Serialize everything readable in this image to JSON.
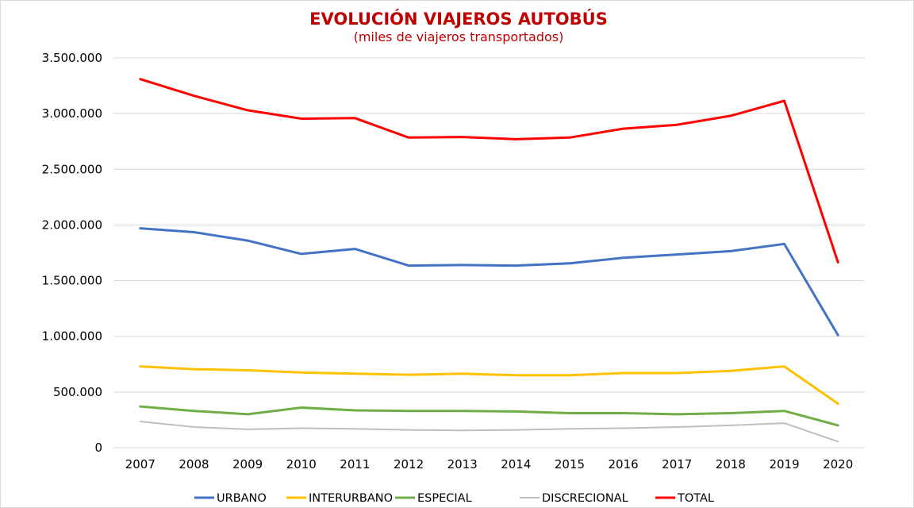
{
  "chart_data": {
    "type": "line",
    "title": "EVOLUCIÓN VIAJEROS AUTOBÚS",
    "subtitle": "(miles de viajeros transportados)",
    "xlabel": "",
    "ylabel": "",
    "categories": [
      "2007",
      "2008",
      "2009",
      "2010",
      "2011",
      "2012",
      "2013",
      "2014",
      "2015",
      "2016",
      "2017",
      "2018",
      "2019",
      "2020"
    ],
    "ylim": [
      0,
      3500000
    ],
    "yticks": [
      0,
      500000,
      1000000,
      1500000,
      2000000,
      2500000,
      3000000,
      3500000
    ],
    "ytick_labels": [
      "0",
      "500.000",
      "1.000.000",
      "1.500.000",
      "2.000.000",
      "2.500.000",
      "3.000.000",
      "3.500.000"
    ],
    "grid": true,
    "legend_position": "bottom",
    "series": [
      {
        "name": "URBANO",
        "color": "#4472c4",
        "values": [
          1970000,
          1935000,
          1860000,
          1740000,
          1785000,
          1635000,
          1640000,
          1635000,
          1655000,
          1705000,
          1735000,
          1765000,
          1830000,
          1010000
        ]
      },
      {
        "name": "INTERURBANO",
        "color": "#ffc000",
        "values": [
          730000,
          705000,
          695000,
          675000,
          665000,
          655000,
          665000,
          650000,
          650000,
          670000,
          670000,
          690000,
          730000,
          395000
        ]
      },
      {
        "name": "ESPECIAL",
        "color": "#70ad47",
        "values": [
          370000,
          330000,
          300000,
          360000,
          335000,
          330000,
          330000,
          325000,
          310000,
          310000,
          300000,
          310000,
          330000,
          200000
        ]
      },
      {
        "name": "DISCRECIONAL",
        "color": "#bfbfbf",
        "values": [
          235000,
          185000,
          165000,
          175000,
          170000,
          160000,
          155000,
          160000,
          170000,
          175000,
          185000,
          200000,
          220000,
          55000
        ]
      },
      {
        "name": "TOTAL",
        "color": "#ff0000",
        "values": [
          3310000,
          3160000,
          3030000,
          2955000,
          2960000,
          2785000,
          2790000,
          2770000,
          2785000,
          2865000,
          2900000,
          2980000,
          3115000,
          1665000
        ]
      }
    ]
  }
}
